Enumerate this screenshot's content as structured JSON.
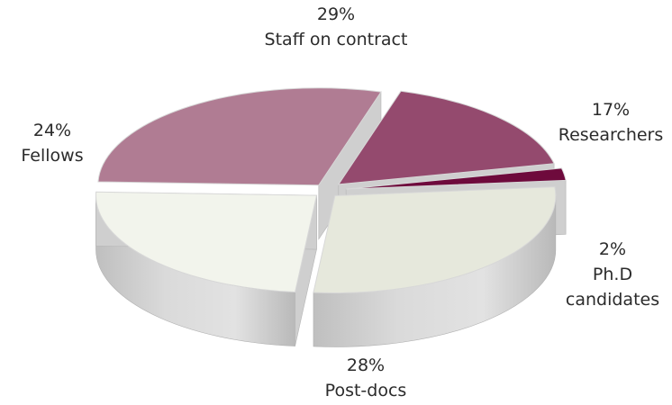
{
  "chart_data": {
    "type": "pie",
    "title": "",
    "legend": "none",
    "slices": [
      {
        "name": "Staff on contract",
        "value": 29,
        "pct_label": "29%",
        "label_lines": [
          "Staff on contract"
        ],
        "color": "#b07c93"
      },
      {
        "name": "Researchers",
        "value": 17,
        "pct_label": "17%",
        "label_lines": [
          "Researchers"
        ],
        "color": "#944a6e"
      },
      {
        "name": "Ph.D candidates",
        "value": 2,
        "pct_label": "2%",
        "label_lines": [
          "Ph.D",
          "candidates"
        ],
        "color": "#6e0a3c"
      },
      {
        "name": "Post-docs",
        "value": 28,
        "pct_label": "28%",
        "label_lines": [
          "Post-docs"
        ],
        "color": "#e6e8dc"
      },
      {
        "name": "Fellows",
        "value": 24,
        "pct_label": "24%",
        "label_lines": [
          "Fellows"
        ],
        "color": "#f2f4ec"
      }
    ]
  }
}
